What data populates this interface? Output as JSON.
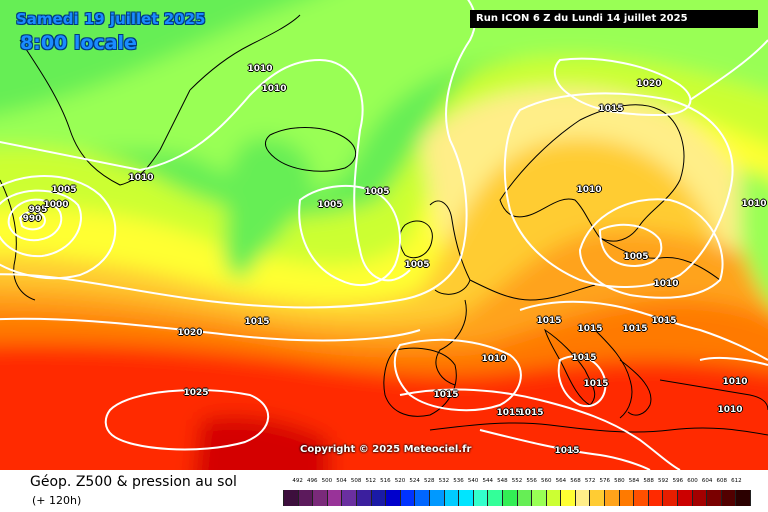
{
  "header": {
    "date": "Samedi 19 juillet 2025",
    "time": "8:00 locale",
    "run": "Run ICON 6 Z du Lundi 14 juillet 2025"
  },
  "copyright": "Copyright © 2025 Meteociel.fr",
  "footer": {
    "title": "Géop. Z500 & pression au sol",
    "lead": "(+ 120h)"
  },
  "map_colors": {
    "green": "#66ee55",
    "lightgreen": "#99ff55",
    "yellowgreen": "#ccff33",
    "yellow": "#ffff33",
    "paleyellow": "#ffee88",
    "lightorange": "#ffcc33",
    "orange": "#ffa31a",
    "darkorange": "#ff7a00",
    "red": "#ff2a00",
    "darkred": "#d40000"
  },
  "isobars": [
    {
      "id": "1010-greenland-a",
      "label": "1010"
    },
    {
      "id": "1010-greenland-b",
      "label": "1010"
    },
    {
      "id": "1010-greenland-c",
      "label": "1010"
    },
    {
      "id": "1005-west-a",
      "label": "1005"
    },
    {
      "id": "995-low",
      "label": "995"
    },
    {
      "id": "1000-low",
      "label": "1000"
    },
    {
      "id": "990-low",
      "label": "990"
    },
    {
      "id": "1005-iceland",
      "label": "1005"
    },
    {
      "id": "1005-atlantic",
      "label": "1005"
    },
    {
      "id": "1005-ireland",
      "label": "1005"
    },
    {
      "id": "1020-scandinavia",
      "label": "1020"
    },
    {
      "id": "1015-scandinavia",
      "label": "1015"
    },
    {
      "id": "1010-scandinavia",
      "label": "1010"
    },
    {
      "id": "1010-east-edge",
      "label": "1010"
    },
    {
      "id": "1005-baltic",
      "label": "1005"
    },
    {
      "id": "1010-russia",
      "label": "1010"
    },
    {
      "id": "1015-atlantic",
      "label": "1015"
    },
    {
      "id": "1020-atlantic",
      "label": "1020"
    },
    {
      "id": "1025-high",
      "label": "1025"
    },
    {
      "id": "1015-alps",
      "label": "1015"
    },
    {
      "id": "1015-italy-north",
      "label": "1015"
    },
    {
      "id": "1015-balkans",
      "label": "1015"
    },
    {
      "id": "1015-greece",
      "label": "1015"
    },
    {
      "id": "1010-spain",
      "label": "1010"
    },
    {
      "id": "1015-spain",
      "label": "1015"
    },
    {
      "id": "1015-italy-south",
      "label": "1015"
    },
    {
      "id": "1015-tyrrhenian-a",
      "label": "1015"
    },
    {
      "id": "1015-tyrrhenian-b",
      "label": "1015"
    },
    {
      "id": "1015-africa",
      "label": "1015"
    },
    {
      "id": "1015-adriatic",
      "label": "1015"
    },
    {
      "id": "1010-turkey-a",
      "label": "1010"
    },
    {
      "id": "1010-turkey-b",
      "label": "1010"
    }
  ],
  "legend": {
    "labels": [
      "492",
      "496",
      "500",
      "504",
      "508",
      "512",
      "516",
      "520",
      "524",
      "528",
      "532",
      "536",
      "540",
      "544",
      "548",
      "552",
      "556",
      "560",
      "564",
      "568",
      "572",
      "576",
      "580",
      "584",
      "588",
      "592",
      "596",
      "600",
      "604",
      "608",
      "612"
    ],
    "colors": [
      "#3d0f3d",
      "#5c1a5c",
      "#7a2a7a",
      "#993399",
      "#6a2fa0",
      "#3b1f9e",
      "#1a1aa6",
      "#0000cc",
      "#0033ff",
      "#0066ff",
      "#0099ff",
      "#00ccff",
      "#00e5ff",
      "#33ffcc",
      "#33ff99",
      "#33ee55",
      "#66ee55",
      "#99ff55",
      "#ccff33",
      "#ffff33",
      "#ffee88",
      "#ffcc33",
      "#ffa31a",
      "#ff7a00",
      "#ff5000",
      "#ff2a00",
      "#e61e00",
      "#cc0000",
      "#a30000",
      "#7a0000",
      "#520000",
      "#2b0000"
    ]
  }
}
